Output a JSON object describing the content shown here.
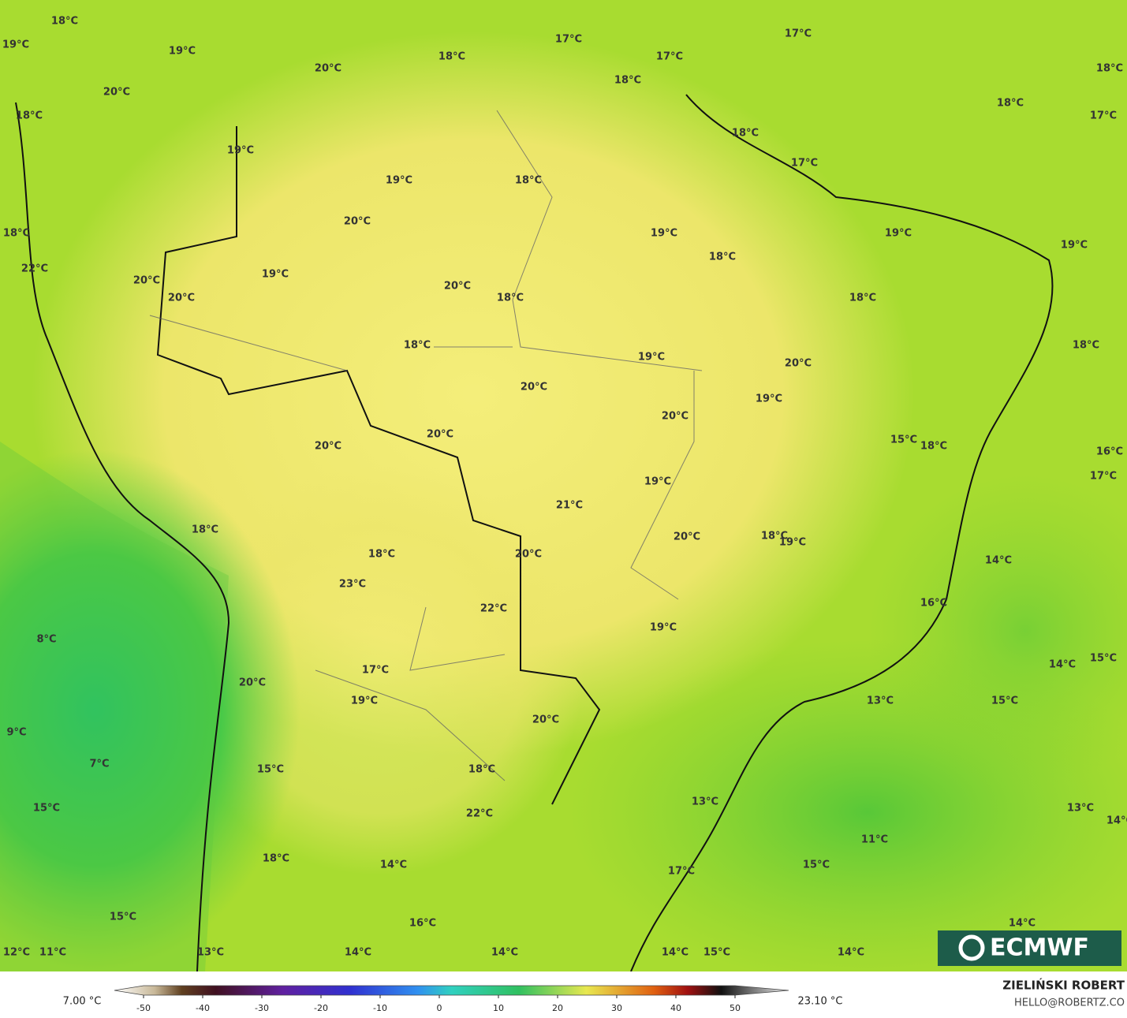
{
  "map": {
    "labels": [
      "18°C",
      "19°C",
      "19°C",
      "20°C",
      "18°C",
      "17°C",
      "17°C",
      "17°C",
      "18°C",
      "18°C",
      "18°C",
      "17°C",
      "20°C",
      "18°C",
      "19°C",
      "18°C",
      "17°C",
      "19°C",
      "18°C",
      "20°C",
      "18°C",
      "19°C",
      "19°C",
      "19°C",
      "18°C",
      "22°C",
      "19°C",
      "20°C",
      "20°C",
      "20°C",
      "18°C",
      "18°C",
      "18°C",
      "19°C",
      "18°C",
      "20°C",
      "20°C",
      "19°C",
      "20°C",
      "20°C",
      "20°C",
      "15°C",
      "18°C",
      "16°C",
      "17°C",
      "19°C",
      "21°C",
      "20°C",
      "18°C",
      "19°C",
      "18°C",
      "18°C",
      "20°C",
      "14°C",
      "23°C",
      "22°C",
      "16°C",
      "19°C",
      "8°C",
      "14°C",
      "15°C",
      "17°C",
      "20°C",
      "19°C",
      "13°C",
      "15°C",
      "20°C",
      "9°C",
      "7°C",
      "15°C",
      "18°C",
      "13°C",
      "15°C",
      "22°C",
      "13°C",
      "14°C",
      "11°C",
      "18°C",
      "14°C",
      "15°C",
      "17°C",
      "15°C",
      "16°C",
      "14°C",
      "12°C",
      "11°C",
      "13°C",
      "14°C",
      "14°C",
      "14°C",
      "15°C",
      "14°C"
    ]
  },
  "legend": {
    "min_label": "7.00 °C",
    "max_label": "23.10 °C",
    "ticks": [
      -50,
      -40,
      -30,
      -20,
      -10,
      0,
      10,
      20,
      30,
      40,
      50
    ]
  },
  "credit": {
    "name": "ZIELIŃSKI ROBERT",
    "email": "HELLO@ROBERTZ.CO"
  },
  "logo": "ECMWF"
}
